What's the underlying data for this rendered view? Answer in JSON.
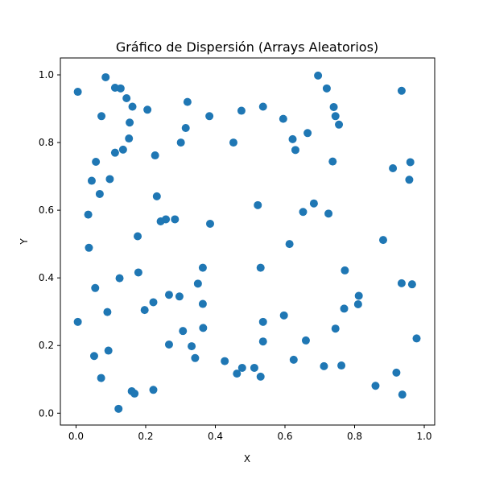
{
  "chart_data": {
    "type": "scatter",
    "title": "Gráfico de Dispersión (Arrays Aleatorios)",
    "xlabel": "X",
    "ylabel": "Y",
    "xlim": [
      -0.045,
      1.03
    ],
    "ylim": [
      -0.035,
      1.05
    ],
    "grid": false,
    "marker_color": "#1f77b4",
    "x_ticks": [
      0.0,
      0.2,
      0.4,
      0.6,
      0.8,
      1.0
    ],
    "x_tick_labels": [
      "0.0",
      "0.2",
      "0.4",
      "0.6",
      "0.8",
      "1.0"
    ],
    "y_ticks": [
      0.0,
      0.2,
      0.4,
      0.6,
      0.8,
      1.0
    ],
    "y_tick_labels": [
      "0.0",
      "0.2",
      "0.4",
      "0.6",
      "0.8",
      "1.0"
    ],
    "points": [
      [
        0.005,
        0.95
      ],
      [
        0.085,
        0.993
      ],
      [
        0.112,
        0.962
      ],
      [
        0.128,
        0.96
      ],
      [
        0.145,
        0.931
      ],
      [
        0.162,
        0.906
      ],
      [
        0.205,
        0.897
      ],
      [
        0.073,
        0.878
      ],
      [
        0.154,
        0.859
      ],
      [
        0.32,
        0.92
      ],
      [
        0.315,
        0.843
      ],
      [
        0.383,
        0.878
      ],
      [
        0.475,
        0.894
      ],
      [
        0.537,
        0.906
      ],
      [
        0.595,
        0.87
      ],
      [
        0.695,
        0.998
      ],
      [
        0.72,
        0.96
      ],
      [
        0.74,
        0.905
      ],
      [
        0.745,
        0.878
      ],
      [
        0.755,
        0.853
      ],
      [
        0.935,
        0.953
      ],
      [
        0.665,
        0.828
      ],
      [
        0.622,
        0.81
      ],
      [
        0.63,
        0.778
      ],
      [
        0.452,
        0.8
      ],
      [
        0.301,
        0.8
      ],
      [
        0.152,
        0.812
      ],
      [
        0.135,
        0.779
      ],
      [
        0.112,
        0.77
      ],
      [
        0.227,
        0.762
      ],
      [
        0.057,
        0.743
      ],
      [
        0.045,
        0.687
      ],
      [
        0.097,
        0.692
      ],
      [
        0.068,
        0.648
      ],
      [
        0.035,
        0.587
      ],
      [
        0.232,
        0.641
      ],
      [
        0.243,
        0.567
      ],
      [
        0.258,
        0.573
      ],
      [
        0.284,
        0.573
      ],
      [
        0.385,
        0.56
      ],
      [
        0.522,
        0.615
      ],
      [
        0.177,
        0.523
      ],
      [
        0.037,
        0.489
      ],
      [
        0.737,
        0.744
      ],
      [
        0.91,
        0.724
      ],
      [
        0.96,
        0.742
      ],
      [
        0.957,
        0.69
      ],
      [
        0.683,
        0.62
      ],
      [
        0.652,
        0.595
      ],
      [
        0.725,
        0.59
      ],
      [
        0.613,
        0.5
      ],
      [
        0.882,
        0.512
      ],
      [
        0.055,
        0.37
      ],
      [
        0.125,
        0.399
      ],
      [
        0.179,
        0.416
      ],
      [
        0.09,
        0.299
      ],
      [
        0.005,
        0.27
      ],
      [
        0.197,
        0.305
      ],
      [
        0.222,
        0.328
      ],
      [
        0.267,
        0.35
      ],
      [
        0.297,
        0.345
      ],
      [
        0.364,
        0.43
      ],
      [
        0.35,
        0.383
      ],
      [
        0.364,
        0.323
      ],
      [
        0.53,
        0.43
      ],
      [
        0.772,
        0.422
      ],
      [
        0.935,
        0.384
      ],
      [
        0.965,
        0.381
      ],
      [
        0.812,
        0.347
      ],
      [
        0.81,
        0.322
      ],
      [
        0.77,
        0.309
      ],
      [
        0.597,
        0.289
      ],
      [
        0.537,
        0.27
      ],
      [
        0.307,
        0.243
      ],
      [
        0.365,
        0.252
      ],
      [
        0.267,
        0.203
      ],
      [
        0.332,
        0.198
      ],
      [
        0.342,
        0.163
      ],
      [
        0.537,
        0.212
      ],
      [
        0.66,
        0.215
      ],
      [
        0.745,
        0.25
      ],
      [
        0.978,
        0.221
      ],
      [
        0.052,
        0.169
      ],
      [
        0.093,
        0.185
      ],
      [
        0.072,
        0.104
      ],
      [
        0.16,
        0.065
      ],
      [
        0.168,
        0.058
      ],
      [
        0.222,
        0.069
      ],
      [
        0.122,
        0.013
      ],
      [
        0.427,
        0.154
      ],
      [
        0.462,
        0.117
      ],
      [
        0.477,
        0.134
      ],
      [
        0.512,
        0.134
      ],
      [
        0.53,
        0.108
      ],
      [
        0.625,
        0.158
      ],
      [
        0.712,
        0.139
      ],
      [
        0.762,
        0.141
      ],
      [
        0.86,
        0.081
      ],
      [
        0.92,
        0.12
      ],
      [
        0.937,
        0.055
      ]
    ]
  }
}
